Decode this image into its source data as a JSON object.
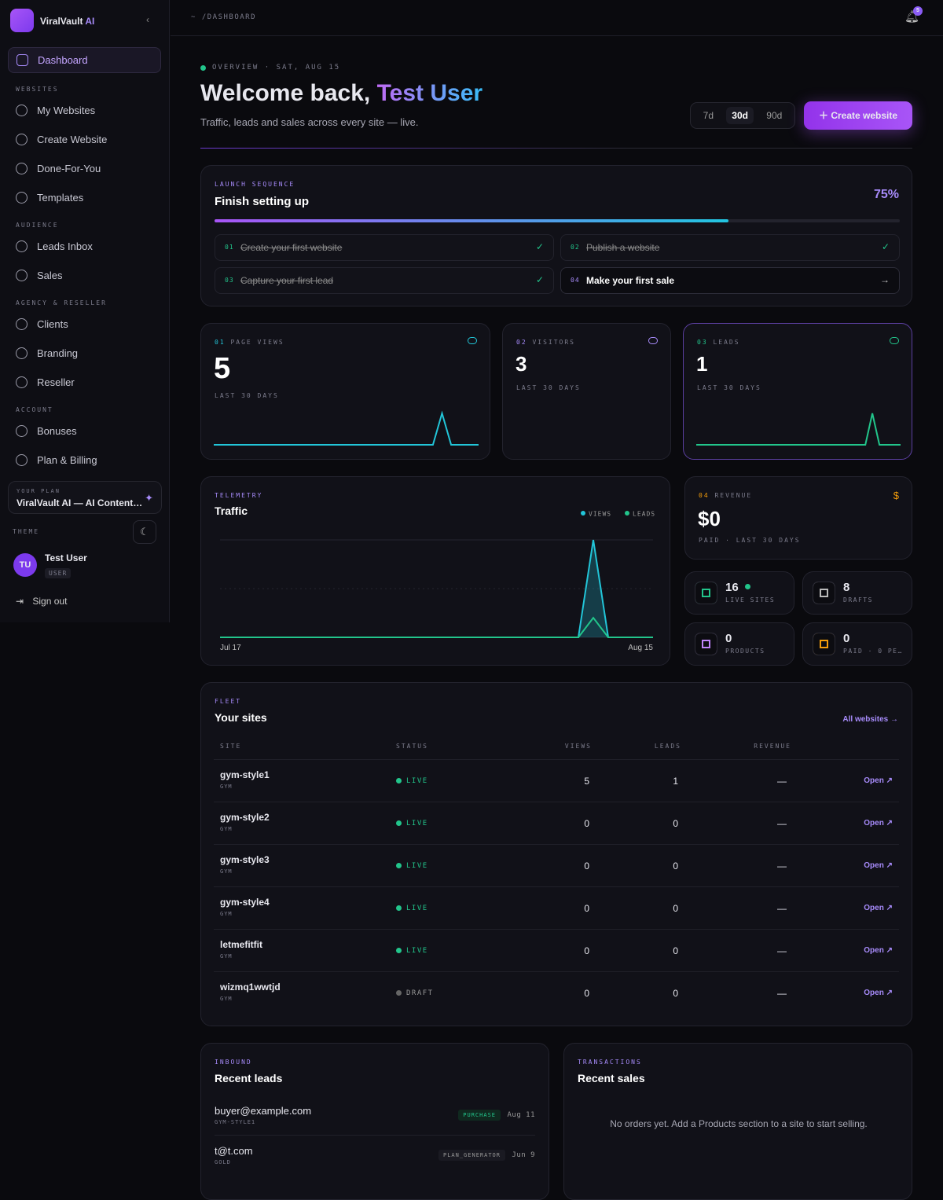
{
  "sidebar": {
    "brand": {
      "name": "ViralVault",
      "accent": "AI"
    },
    "active": "Dashboard",
    "sections": [
      {
        "label": "WEBSITES",
        "items": [
          "My Websites",
          "Create Website",
          "Done-For-You",
          "Templates"
        ]
      },
      {
        "label": "AUDIENCE",
        "items": [
          "Leads Inbox",
          "Sales"
        ]
      },
      {
        "label": "AGENCY & RESELLER",
        "items": [
          "Clients",
          "Branding",
          "Reseller"
        ]
      },
      {
        "label": "ACCOUNT",
        "items": [
          "Bonuses",
          "Plan & Billing"
        ]
      }
    ],
    "plan": {
      "label": "YOUR PLAN",
      "name": "ViralVault AI — AI Content…"
    },
    "theme": "THEME",
    "user": {
      "initials": "TU",
      "name": "Test User",
      "role": "USER"
    },
    "sign_out": "Sign out"
  },
  "topbar": {
    "breadcrumb": "~ /DASHBOARD",
    "notifications": 5
  },
  "header": {
    "eyebrow": "OVERVIEW · SAT, AUG 15",
    "greeting": "Welcome back,",
    "user": "Test User",
    "subtitle": "Traffic, leads and sales across every site — live.",
    "ranges": [
      "7d",
      "30d",
      "90d"
    ],
    "active_range": "30d",
    "cta": "Create website"
  },
  "setup": {
    "eyebrow": "LAUNCH SEQUENCE",
    "title": "Finish setting up",
    "progress": {
      "value": 75,
      "label": "75%"
    },
    "steps": [
      {
        "num": "01",
        "label": "Create your first website",
        "done": true
      },
      {
        "num": "02",
        "label": "Publish a website",
        "done": true
      },
      {
        "num": "03",
        "label": "Capture your first lead",
        "done": true
      },
      {
        "num": "04",
        "label": "Make your first sale",
        "done": false
      }
    ]
  },
  "stats": [
    {
      "num": "01",
      "label": "PAGE VIEWS",
      "value": 5,
      "period": "LAST 30 DAYS"
    },
    {
      "num": "02",
      "label": "VISITORS",
      "value": 3,
      "period": "LAST 30 DAYS"
    },
    {
      "num": "03",
      "label": "LEADS",
      "value": 1,
      "period": "LAST 30 DAYS"
    }
  ],
  "revenue": {
    "num": "04",
    "label": "REVENUE",
    "value": 0,
    "value_label": "$0",
    "period": "PAID · LAST 30 DAYS"
  },
  "mini": [
    {
      "value": 16,
      "label": "LIVE SITES"
    },
    {
      "value": 8,
      "label": "DRAFTS"
    },
    {
      "value": 0,
      "label": "PRODUCTS"
    },
    {
      "value": 0,
      "label": "PAID · 0 PE…"
    }
  ],
  "chart_data": {
    "type": "line",
    "eyebrow": "TELEMETRY",
    "title": "Traffic",
    "categories": [
      "Jul 17",
      null,
      null,
      null,
      null,
      null,
      null,
      null,
      null,
      null,
      null,
      null,
      null,
      null,
      null,
      null,
      null,
      null,
      null,
      null,
      null,
      null,
      null,
      null,
      null,
      null,
      null,
      null,
      null,
      "Aug 15"
    ],
    "series": [
      {
        "name": "VIEWS",
        "color": "#22c5d8",
        "values": [
          0,
          0,
          0,
          0,
          0,
          0,
          0,
          0,
          0,
          0,
          0,
          0,
          0,
          0,
          0,
          0,
          0,
          0,
          0,
          0,
          0,
          0,
          0,
          0,
          0,
          5,
          0,
          0,
          0,
          0
        ]
      },
      {
        "name": "LEADS",
        "color": "#22c58b",
        "values": [
          0,
          0,
          0,
          0,
          0,
          0,
          0,
          0,
          0,
          0,
          0,
          0,
          0,
          0,
          0,
          0,
          0,
          0,
          0,
          0,
          0,
          0,
          0,
          0,
          0,
          1,
          0,
          0,
          0,
          0
        ]
      }
    ],
    "ylim": [
      0,
      5
    ]
  },
  "sites": {
    "eyebrow": "FLEET",
    "title": "Your sites",
    "link": "All websites",
    "columns": [
      "SITE",
      "STATUS",
      "VIEWS",
      "LEADS",
      "REVENUE"
    ],
    "rows": [
      {
        "name": "gym-style1",
        "category": "GYM",
        "status": "LIVE",
        "views": 5,
        "leads": 1,
        "revenue": "—",
        "action": "Open"
      },
      {
        "name": "gym-style2",
        "category": "GYM",
        "status": "LIVE",
        "views": 0,
        "leads": 0,
        "revenue": "—",
        "action": "Open"
      },
      {
        "name": "gym-style3",
        "category": "GYM",
        "status": "LIVE",
        "views": 0,
        "leads": 0,
        "revenue": "—",
        "action": "Open"
      },
      {
        "name": "gym-style4",
        "category": "GYM",
        "status": "LIVE",
        "views": 0,
        "leads": 0,
        "revenue": "—",
        "action": "Open"
      },
      {
        "name": "letmefitfit",
        "category": "GYM",
        "status": "LIVE",
        "views": 0,
        "leads": 0,
        "revenue": "—",
        "action": "Open"
      },
      {
        "name": "wizmq1wwtjd",
        "category": "GYM",
        "status": "DRAFT",
        "views": 0,
        "leads": 0,
        "revenue": "—",
        "action": "Open"
      }
    ]
  },
  "leads": {
    "eyebrow": "INBOUND",
    "title": "Recent leads",
    "items": [
      {
        "email": "buyer@example.com",
        "site": "GYM-STYLE1",
        "tag": "PURCHASE",
        "date": "Aug 11"
      },
      {
        "email": "t@t.com",
        "site": "GOLD",
        "tag": "PLAN_GENERATOR",
        "date": "Jun 9"
      }
    ]
  },
  "sales": {
    "eyebrow": "TRANSACTIONS",
    "title": "Recent sales",
    "empty": "No orders yet. Add a Products section to a site to start selling."
  }
}
